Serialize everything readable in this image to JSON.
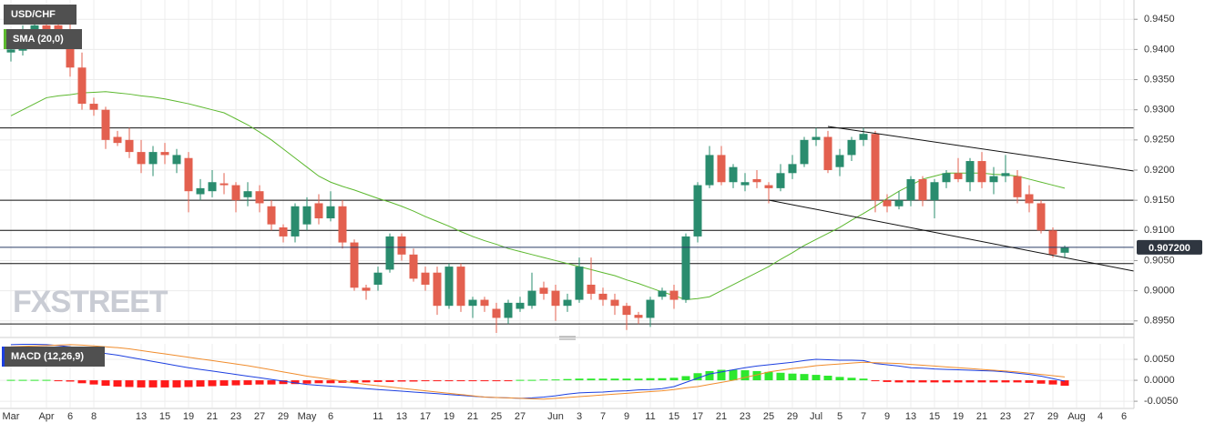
{
  "chart_data": {
    "type": "candlestick",
    "name": "USD/CHF",
    "up_color": "#2a8c6e",
    "down_color": "#e3604f",
    "categories": [
      "Mar",
      null,
      null,
      "Apr",
      null,
      "6",
      null,
      "8",
      null,
      null,
      null,
      "13",
      null,
      "15",
      null,
      "19",
      null,
      "21",
      null,
      "23",
      null,
      "27",
      null,
      "29",
      null,
      "May",
      null,
      "6",
      null,
      null,
      null,
      "11",
      null,
      "13",
      null,
      "17",
      null,
      "19",
      null,
      "21",
      null,
      "25",
      null,
      "27",
      null,
      null,
      "Jun",
      null,
      "3",
      null,
      "7",
      null,
      "9",
      null,
      "11",
      null,
      "15",
      null,
      "17",
      null,
      "21",
      null,
      "23",
      null,
      "25",
      null,
      "29",
      null,
      "Jul",
      null,
      "5",
      null,
      "7",
      null,
      "9",
      null,
      "13",
      null,
      "15",
      null,
      "19",
      null,
      "21",
      null,
      "23",
      null,
      "27",
      null,
      "29",
      null,
      "Aug",
      null,
      "4",
      null,
      "6"
    ],
    "open": [
      0.9395,
      0.9398,
      0.9425,
      0.944,
      0.944,
      0.943,
      0.937,
      0.931,
      0.93,
      0.9255,
      0.925,
      0.923,
      0.921,
      0.923,
      0.921,
      0.922,
      0.916,
      0.9165,
      0.9178,
      0.9175,
      0.9155,
      0.9165,
      0.914,
      0.9105,
      0.909,
      0.911,
      0.9145,
      0.912,
      0.914,
      0.908,
      0.9005,
      0.901,
      0.9035,
      0.909,
      0.906,
      0.903,
      0.903,
      0.8975,
      0.904,
      0.8975,
      0.8985,
      0.897,
      0.8955,
      0.897,
      0.8975,
      0.9005,
      0.9,
      0.8975,
      0.8985,
      0.901,
      0.8995,
      0.8985,
      0.8975,
      0.896,
      0.8955,
      0.899,
      0.9,
      0.8985,
      0.909,
      0.9175,
      0.9225,
      0.918,
      0.9175,
      0.9185,
      0.9175,
      0.917,
      0.9195,
      0.921,
      0.925,
      0.9255,
      0.9205,
      0.9225,
      0.925,
      0.926,
      0.915,
      0.914,
      0.915,
      0.9185,
      0.915,
      0.918,
      0.9195,
      0.918,
      0.9215,
      0.918,
      0.919,
      0.919,
      0.916,
      0.9145,
      0.91,
      0.9063,
      null,
      null,
      null,
      null,
      null
    ],
    "high": [
      0.941,
      0.944,
      0.9455,
      0.945,
      0.945,
      0.9445,
      0.9395,
      0.932,
      0.9305,
      0.9265,
      0.927,
      0.925,
      0.924,
      0.9245,
      0.9235,
      0.923,
      0.9185,
      0.92,
      0.9195,
      0.918,
      0.918,
      0.9175,
      0.915,
      0.911,
      0.9145,
      0.9155,
      0.916,
      0.9165,
      0.915,
      0.9085,
      0.901,
      0.904,
      0.9095,
      0.9095,
      0.907,
      0.904,
      0.904,
      0.9045,
      0.9045,
      0.899,
      0.899,
      0.898,
      0.8985,
      0.899,
      0.903,
      0.9015,
      0.901,
      0.8995,
      0.9055,
      0.9055,
      0.9005,
      0.8995,
      0.898,
      0.8965,
      0.899,
      0.9005,
      0.901,
      0.9095,
      0.918,
      0.924,
      0.924,
      0.921,
      0.9195,
      0.92,
      0.918,
      0.921,
      0.9225,
      0.9255,
      0.927,
      0.9265,
      0.9235,
      0.9255,
      0.927,
      0.9265,
      0.916,
      0.9165,
      0.919,
      0.919,
      0.9185,
      0.92,
      0.922,
      0.922,
      0.923,
      0.9205,
      0.9225,
      0.92,
      0.9175,
      0.915,
      0.9105,
      0.9075,
      null,
      null,
      null,
      null,
      null
    ],
    "low": [
      0.938,
      0.939,
      0.9415,
      0.941,
      0.942,
      0.9355,
      0.93,
      0.929,
      0.9235,
      0.924,
      0.922,
      0.9195,
      0.919,
      0.921,
      0.9195,
      0.913,
      0.915,
      0.9155,
      0.916,
      0.913,
      0.914,
      0.913,
      0.91,
      0.908,
      0.908,
      0.91,
      0.911,
      0.9115,
      0.907,
      0.9,
      0.8985,
      0.9,
      0.903,
      0.905,
      0.9015,
      0.9,
      0.896,
      0.897,
      0.8965,
      0.8955,
      0.8965,
      0.893,
      0.8945,
      0.8965,
      0.897,
      0.8985,
      0.895,
      0.8965,
      0.898,
      0.8985,
      0.8975,
      0.896,
      0.8935,
      0.8945,
      0.894,
      0.8985,
      0.897,
      0.898,
      0.908,
      0.917,
      0.9175,
      0.917,
      0.9165,
      0.917,
      0.9145,
      0.9165,
      0.9185,
      0.9205,
      0.924,
      0.9195,
      0.919,
      0.9215,
      0.924,
      0.913,
      0.913,
      0.9135,
      0.914,
      0.914,
      0.912,
      0.917,
      0.918,
      0.9165,
      0.917,
      0.916,
      0.918,
      0.9145,
      0.913,
      0.9095,
      0.9055,
      0.9055,
      null,
      null,
      null,
      null,
      null
    ],
    "close": [
      0.94,
      0.9425,
      0.944,
      0.9425,
      0.943,
      0.937,
      0.931,
      0.93,
      0.925,
      0.9245,
      0.923,
      0.921,
      0.923,
      0.9225,
      0.9225,
      0.9165,
      0.917,
      0.918,
      0.9175,
      0.915,
      0.9165,
      0.9145,
      0.911,
      0.909,
      0.914,
      0.914,
      0.912,
      0.914,
      0.908,
      0.9005,
      0.9,
      0.903,
      0.909,
      0.906,
      0.902,
      0.901,
      0.8975,
      0.904,
      0.8975,
      0.8985,
      0.8975,
      0.8955,
      0.898,
      0.898,
      0.9,
      0.8995,
      0.8975,
      0.8985,
      0.904,
      0.8995,
      0.8985,
      0.8975,
      0.896,
      0.8955,
      0.8985,
      0.9,
      0.8985,
      0.909,
      0.9175,
      0.9225,
      0.918,
      0.9205,
      0.918,
      0.918,
      0.917,
      0.9195,
      0.921,
      0.925,
      0.9255,
      0.92,
      0.9225,
      0.925,
      0.926,
      0.915,
      0.914,
      0.915,
      0.9185,
      0.915,
      0.918,
      0.9195,
      0.9185,
      0.9215,
      0.918,
      0.919,
      0.9195,
      0.9155,
      0.9145,
      0.91,
      0.906,
      0.9072,
      null,
      null,
      null,
      null,
      null
    ],
    "ylim": [
      0.8924,
      0.9482
    ],
    "yticks": [
      {
        "value": 0.945,
        "label": "0.9450"
      },
      {
        "value": 0.94,
        "label": "0.9400"
      },
      {
        "value": 0.935,
        "label": "0.9350"
      },
      {
        "value": 0.93,
        "label": "0.9300"
      },
      {
        "value": 0.925,
        "label": "0.9250"
      },
      {
        "value": 0.92,
        "label": "0.9200"
      },
      {
        "value": 0.915,
        "label": "0.9150"
      },
      {
        "value": 0.91,
        "label": "0.9100"
      },
      {
        "value": 0.905,
        "label": "0.9050"
      },
      {
        "value": 0.9,
        "label": "0.9000"
      },
      {
        "value": 0.895,
        "label": "0.8950"
      }
    ],
    "grid": true,
    "last_price": {
      "value": 0.9072,
      "label": "0.907200"
    },
    "levels": [
      0.927,
      0.915,
      0.91,
      0.9045,
      0.8945
    ],
    "overlays": [
      {
        "name": "SMA (20,0)",
        "color": "#5cb82e",
        "values": [
          0.929,
          0.93,
          0.931,
          0.932,
          0.9323,
          0.9325,
          0.9328,
          0.9329,
          0.933,
          0.9328,
          0.9326,
          0.9323,
          0.9321,
          0.9318,
          0.9314,
          0.931,
          0.9305,
          0.93,
          0.9295,
          0.9285,
          0.9275,
          0.9263,
          0.925,
          0.9235,
          0.922,
          0.9205,
          0.919,
          0.918,
          0.9173,
          0.9167,
          0.916,
          0.9153,
          0.9147,
          0.914,
          0.9132,
          0.9123,
          0.9115,
          0.9107,
          0.9098,
          0.909,
          0.9083,
          0.9077,
          0.907,
          0.9065,
          0.906,
          0.9055,
          0.905,
          0.9045,
          0.904,
          0.9035,
          0.903,
          0.9025,
          0.9018,
          0.9012,
          0.9005,
          0.8998,
          0.8992,
          0.8985,
          0.8987,
          0.899,
          0.9,
          0.901,
          0.902,
          0.903,
          0.904,
          0.9052,
          0.9063,
          0.9075,
          0.9085,
          0.9095,
          0.9105,
          0.9117,
          0.9128,
          0.914,
          0.9153,
          0.9165,
          0.9175,
          0.9185,
          0.919,
          0.9195,
          0.9195,
          0.9195,
          0.9195,
          0.9193,
          0.9192,
          0.919,
          0.9185,
          0.918,
          0.9175,
          0.917,
          null,
          null,
          null,
          null,
          null
        ]
      }
    ],
    "watermark": "FXSTREET",
    "macd": {
      "name": "MACD (12,26,9)",
      "label_color": "#1c3fe0",
      "ylim": [
        -0.0065,
        0.0087
      ],
      "yticks": [
        {
          "value": 0.005,
          "label": "0.0050"
        },
        {
          "value": 0,
          "label": "0.0000"
        },
        {
          "value": -0.005,
          "label": "-0.0050"
        }
      ],
      "histogram": {
        "up_color": "#2ee82e",
        "down_color": "#ff1a1a",
        "values": [
          0.0001,
          0.0001,
          0.0001,
          0.0001,
          -0.0001,
          -0.0003,
          -0.0007,
          -0.001,
          -0.0013,
          -0.0015,
          -0.0016,
          -0.0017,
          -0.0017,
          -0.0017,
          -0.0017,
          -0.0016,
          -0.0015,
          -0.0014,
          -0.0013,
          -0.0012,
          -0.0011,
          -0.001,
          -0.001,
          -0.0009,
          -0.0009,
          -0.0008,
          -0.0007,
          -0.0007,
          -0.0006,
          -0.0006,
          -0.0005,
          -0.0004,
          -0.0004,
          -0.0003,
          -0.0003,
          -0.0002,
          -0.0002,
          -0.0002,
          -0.0001,
          -0.0001,
          -0.0001,
          -0.0001,
          -0.0001,
          0.0001,
          0.0001,
          0.0002,
          0.0002,
          0.0003,
          0.0004,
          0.0004,
          0.0004,
          0.0004,
          0.0004,
          0.0004,
          0.0005,
          0.0005,
          0.0006,
          0.001,
          0.0017,
          0.0022,
          0.0025,
          0.0025,
          0.0024,
          0.0022,
          0.002,
          0.0018,
          0.0016,
          0.0015,
          0.0013,
          0.0011,
          0.0008,
          0.0006,
          0.0004,
          -0.0002,
          -0.0004,
          -0.0005,
          -0.0005,
          -0.0005,
          -0.0005,
          -0.0005,
          -0.0005,
          -0.0005,
          -0.0005,
          -0.0005,
          -0.0005,
          -0.0005,
          -0.0006,
          -0.0008,
          -0.001,
          -0.0013,
          null,
          null,
          null,
          null,
          null
        ]
      },
      "series": [
        {
          "color": "#1c3fe0",
          "values": [
            0.0085,
            0.0086,
            0.0086,
            0.0085,
            0.0083,
            0.008,
            0.0075,
            0.0069,
            0.0064,
            0.006,
            0.0055,
            0.005,
            0.0045,
            0.004,
            0.0035,
            0.003,
            0.0026,
            0.0022,
            0.0018,
            0.0014,
            0.001,
            0.0006,
            0.0002,
            -0.0002,
            -0.0006,
            -0.001,
            -0.0012,
            -0.0014,
            -0.0016,
            -0.0018,
            -0.002,
            -0.0022,
            -0.0024,
            -0.0026,
            -0.0028,
            -0.003,
            -0.0032,
            -0.0034,
            -0.0036,
            -0.0038,
            -0.004,
            -0.0041,
            -0.0042,
            -0.0043,
            -0.0042,
            -0.004,
            -0.0037,
            -0.0033,
            -0.003,
            -0.0029,
            -0.0028,
            -0.0026,
            -0.0025,
            -0.0023,
            -0.0022,
            -0.002,
            -0.0015,
            -0.0005,
            0.0005,
            0.0015,
            0.002,
            0.0025,
            0.003,
            0.0034,
            0.0037,
            0.004,
            0.0043,
            0.0047,
            0.005,
            0.0049,
            0.0048,
            0.0048,
            0.0047,
            0.004,
            0.0037,
            0.0034,
            0.003,
            0.0029,
            0.0027,
            0.0026,
            0.0025,
            0.0024,
            0.0023,
            0.0022,
            0.002,
            0.0017,
            0.0014,
            0.001,
            0.0004,
            -0.0002,
            null,
            null,
            null,
            null,
            null
          ]
        },
        {
          "color": "#f08c2c",
          "values": [
            0.008,
            0.0081,
            0.0082,
            0.0083,
            0.0084,
            0.0085,
            0.0084,
            0.0082,
            0.008,
            0.0078,
            0.0075,
            0.0071,
            0.0067,
            0.0063,
            0.0059,
            0.0055,
            0.0051,
            0.0047,
            0.0043,
            0.0039,
            0.0035,
            0.003,
            0.0025,
            0.002,
            0.0015,
            0.001,
            0.0006,
            0.0002,
            -0.0002,
            -0.0006,
            -0.001,
            -0.0013,
            -0.0016,
            -0.0019,
            -0.0022,
            -0.0025,
            -0.0028,
            -0.0031,
            -0.0034,
            -0.0037,
            -0.004,
            -0.0041,
            -0.0042,
            -0.0043,
            -0.0044,
            -0.0045,
            -0.0043,
            -0.0041,
            -0.0039,
            -0.0037,
            -0.0035,
            -0.0033,
            -0.0031,
            -0.0029,
            -0.0027,
            -0.0025,
            -0.0022,
            -0.0018,
            -0.0015,
            -0.001,
            -0.0005,
            0,
            0.0007,
            0.0013,
            0.002,
            0.0024,
            0.0028,
            0.0031,
            0.0035,
            0.0037,
            0.0039,
            0.0041,
            0.0043,
            0.0042,
            0.0041,
            0.004,
            0.0038,
            0.0036,
            0.0034,
            0.0032,
            0.003,
            0.0028,
            0.0026,
            0.0024,
            0.0022,
            0.002,
            0.0017,
            0.0014,
            0.0011,
            0.0008,
            null,
            null,
            null,
            null,
            null
          ]
        }
      ]
    }
  }
}
